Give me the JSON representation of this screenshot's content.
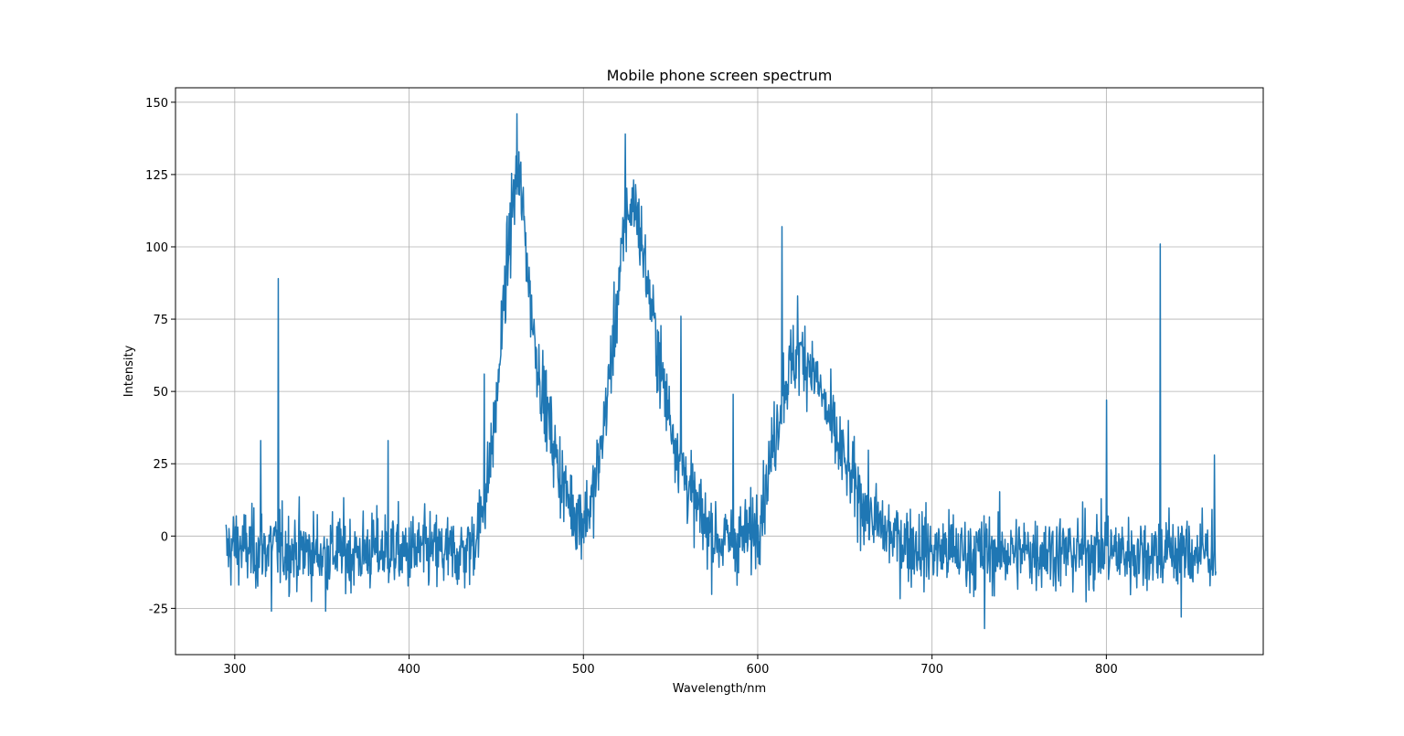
{
  "chart_data": {
    "type": "line",
    "title": "Mobile phone screen spectrum",
    "xlabel": "Wavelength/nm",
    "ylabel": "Intensity",
    "xlim": [
      266,
      890
    ],
    "ylim": [
      -41,
      155
    ],
    "xticks": [
      300,
      400,
      500,
      600,
      700,
      800
    ],
    "yticks": [
      -25,
      0,
      25,
      50,
      75,
      100,
      125,
      150
    ],
    "grid": true,
    "series": [
      {
        "color": "#1f77b4",
        "x": [
          295,
          300,
          310,
          320,
          330,
          340,
          350,
          360,
          370,
          380,
          390,
          400,
          410,
          420,
          430,
          435,
          440,
          445,
          450,
          455,
          460,
          463,
          466,
          470,
          475,
          480,
          485,
          490,
          495,
          500,
          505,
          510,
          515,
          520,
          525,
          530,
          535,
          540,
          545,
          550,
          555,
          560,
          565,
          570,
          575,
          580,
          585,
          590,
          595,
          600,
          605,
          610,
          615,
          620,
          625,
          630,
          635,
          640,
          645,
          650,
          655,
          660,
          665,
          670,
          680,
          690,
          700,
          710,
          720,
          730,
          740,
          750,
          760,
          770,
          780,
          790,
          800,
          810,
          820,
          830,
          840,
          850,
          860,
          863
        ],
        "y": [
          -5,
          -3,
          -5,
          -4,
          -5,
          -5,
          -6,
          -5,
          -6,
          -5,
          -5,
          -6,
          -5,
          -6,
          -6,
          -4,
          3,
          18,
          45,
          85,
          118,
          125,
          108,
          78,
          55,
          40,
          25,
          15,
          8,
          6,
          12,
          30,
          55,
          85,
          112,
          115,
          95,
          75,
          55,
          40,
          28,
          18,
          10,
          4,
          0,
          -2,
          -2,
          -1,
          0,
          5,
          18,
          35,
          52,
          60,
          63,
          60,
          52,
          42,
          33,
          25,
          18,
          12,
          7,
          3,
          -1,
          -3,
          -5,
          -5,
          -6,
          -6,
          -5,
          -6,
          -5,
          -5,
          -6,
          -5,
          -5,
          -6,
          -6,
          -5,
          -5,
          -6,
          -5,
          -5
        ],
        "spikes": [
          [
            325,
            89
          ],
          [
            315,
            33
          ],
          [
            388,
            33
          ],
          [
            443,
            56
          ],
          [
            462,
            146
          ],
          [
            524,
            139
          ],
          [
            556,
            76
          ],
          [
            586,
            49
          ],
          [
            614,
            107
          ],
          [
            623,
            83
          ],
          [
            800,
            47
          ],
          [
            831,
            101
          ],
          [
            862,
            28
          ],
          [
            730,
            -32
          ],
          [
            352,
            -26
          ],
          [
            321,
            -26
          ],
          [
            843,
            -28
          ]
        ]
      }
    ]
  }
}
